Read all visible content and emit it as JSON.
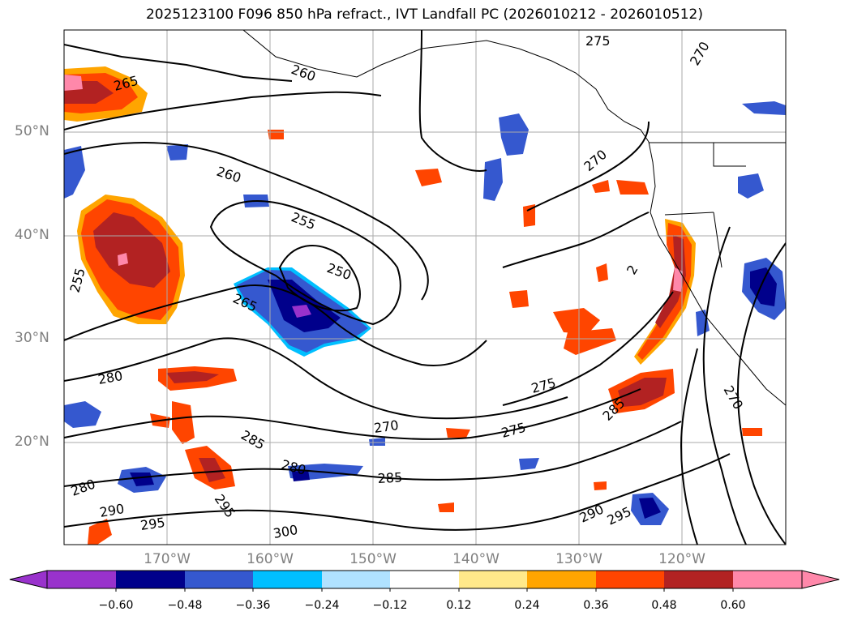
{
  "title": "2025123100 F096 850 hPa refract., IVT Landfall PC (2026010212 - 2026010512)",
  "lat_labels": [
    "50°N",
    "40°N",
    "30°N",
    "20°N"
  ],
  "lon_labels": [
    "170°W",
    "160°W",
    "150°W",
    "140°W",
    "130°W",
    "120°W"
  ],
  "colorbar": {
    "colors": [
      "#9932CC",
      "#00008B",
      "#3558CF",
      "#00BFFF",
      "#B0E2FF",
      "#FFFFFF",
      "#FFE98A",
      "#FFA500",
      "#FF4500",
      "#B22222",
      "#FF88AA"
    ],
    "tick_labels": [
      "−0.60",
      "−0.48",
      "−0.36",
      "−0.24",
      "−0.12",
      "0.12",
      "0.24",
      "0.36",
      "0.48",
      "0.60"
    ],
    "extend": "both"
  },
  "contour_labels": [
    "260",
    "265",
    "260",
    "255",
    "250",
    "265",
    "255",
    "280",
    "270",
    "275",
    "275",
    "270",
    "285",
    "280",
    "285",
    "280",
    "290",
    "295",
    "300",
    "295",
    "285",
    "290",
    "295",
    "270",
    "270",
    "275",
    "2"
  ],
  "colors": {
    "contour": "#000000",
    "grid": "#aaaaaa",
    "axis_label": "#808080"
  }
}
